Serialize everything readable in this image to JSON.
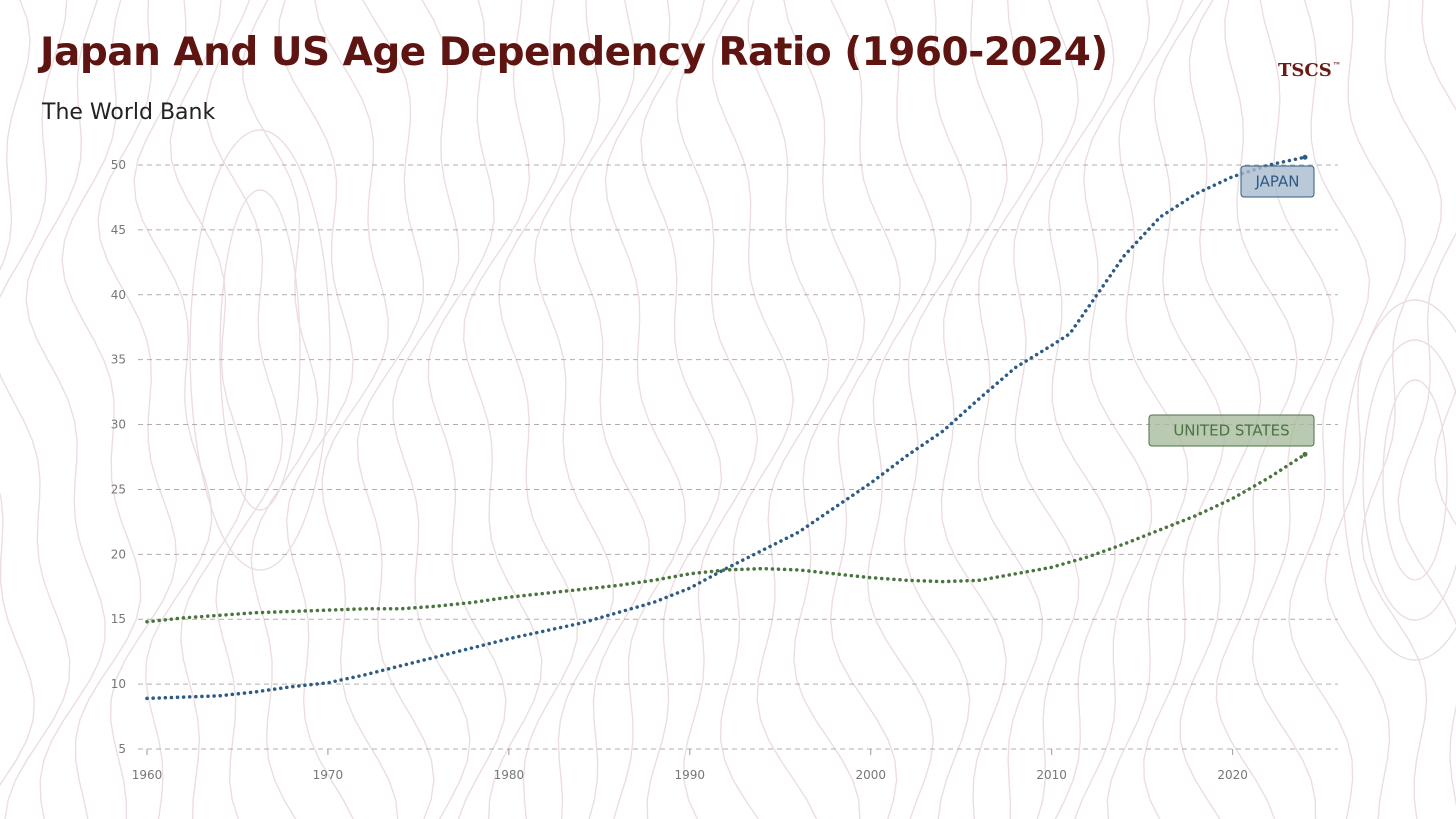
{
  "header": {
    "title": "Japan And US Age Dependency Ratio (1960-2024)",
    "subtitle": "The World Bank",
    "logo": "TSCS",
    "logo_mark": "™"
  },
  "chart_data": {
    "type": "line",
    "title": "Japan And US Age Dependency Ratio (1960-2024)",
    "subtitle": "The World Bank",
    "xlabel": "",
    "ylabel": "",
    "xlim": [
      1960,
      2024
    ],
    "ylim": [
      5,
      50
    ],
    "xticks": [
      1960,
      1970,
      1980,
      1990,
      2000,
      2010,
      2020
    ],
    "yticks": [
      5,
      10,
      15,
      20,
      25,
      30,
      35,
      40,
      45,
      50
    ],
    "grid": "horizontal-dashed",
    "series": [
      {
        "name": "JAPAN",
        "color": "#2c5b86",
        "label_bg": "#a9bccd",
        "x": [
          1960,
          1962,
          1964,
          1966,
          1968,
          1970,
          1972,
          1974,
          1976,
          1978,
          1980,
          1982,
          1984,
          1986,
          1988,
          1990,
          1992,
          1994,
          1996,
          1998,
          2000,
          2002,
          2004,
          2006,
          2008,
          2010,
          2011,
          2012,
          2014,
          2016,
          2018,
          2020,
          2022,
          2024
        ],
        "values": [
          8.9,
          9.0,
          9.1,
          9.4,
          9.8,
          10.1,
          10.7,
          11.4,
          12.1,
          12.8,
          13.5,
          14.1,
          14.7,
          15.5,
          16.3,
          17.4,
          18.9,
          20.3,
          21.7,
          23.6,
          25.5,
          27.6,
          29.5,
          32.0,
          34.4,
          36.1,
          37.0,
          39.0,
          43.0,
          46.0,
          47.8,
          49.1,
          50.0,
          50.6
        ]
      },
      {
        "name": "UNITED STATES",
        "color": "#4a7540",
        "label_bg": "#a8bb9f",
        "x": [
          1960,
          1962,
          1964,
          1966,
          1968,
          1970,
          1972,
          1974,
          1976,
          1978,
          1980,
          1982,
          1984,
          1986,
          1988,
          1990,
          1992,
          1994,
          1996,
          1998,
          2000,
          2002,
          2004,
          2006,
          2008,
          2010,
          2012,
          2014,
          2016,
          2018,
          2020,
          2022,
          2024
        ],
        "values": [
          14.8,
          15.1,
          15.3,
          15.5,
          15.6,
          15.7,
          15.8,
          15.8,
          16.0,
          16.3,
          16.7,
          17.0,
          17.3,
          17.6,
          18.0,
          18.5,
          18.8,
          18.9,
          18.8,
          18.5,
          18.2,
          18.0,
          17.9,
          18.0,
          18.5,
          19.0,
          19.8,
          20.8,
          21.9,
          23.0,
          24.3,
          25.9,
          27.7
        ]
      }
    ]
  }
}
